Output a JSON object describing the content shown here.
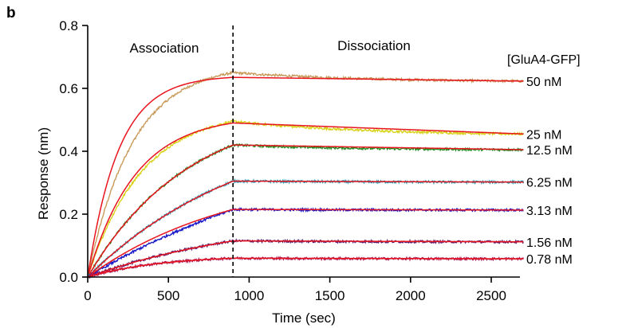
{
  "panel_label": "b",
  "chart_data": {
    "type": "line",
    "title": "",
    "xlabel": "Time (sec)",
    "ylabel": "Response (nm)",
    "xlim": [
      0,
      2700
    ],
    "ylim": [
      0,
      0.8
    ],
    "x_ticks": [
      0,
      500,
      1000,
      1500,
      2000,
      2500
    ],
    "y_ticks": [
      0.0,
      0.2,
      0.4,
      0.6,
      0.8
    ],
    "y_tick_labels": [
      "0.0",
      "0.2",
      "0.4",
      "0.6",
      "0.8"
    ],
    "association_end_sec": 900,
    "phase_labels": {
      "association": "Association",
      "dissociation": "Dissociation"
    },
    "legend_title": "[GluA4-GFP]",
    "fit_color": "#e8141e",
    "series": [
      {
        "name": "50 nM",
        "color": "#c89a5a",
        "plateau": 0.65,
        "peak_fit": 0.635,
        "end": 0.623,
        "k_data": 0.0036,
        "k_fit": 0.0052
      },
      {
        "name": "25 nM",
        "color": "#d8d21a",
        "plateau": 0.495,
        "peak_fit": 0.49,
        "end": 0.455,
        "k_data": 0.003,
        "k_fit": 0.0034
      },
      {
        "name": "12.5 nM",
        "color": "#1e8c1e",
        "plateau": 0.42,
        "peak_fit": 0.42,
        "end": 0.405,
        "k_data": 0.0016,
        "k_fit": 0.0016
      },
      {
        "name": "6.25 nM",
        "color": "#2a9ab4",
        "plateau": 0.305,
        "peak_fit": 0.305,
        "end": 0.302,
        "k_data": 0.001,
        "k_fit": 0.001
      },
      {
        "name": "3.13 nM",
        "color": "#1a1ac8",
        "plateau": 0.215,
        "peak_fit": 0.215,
        "end": 0.213,
        "k_data": 0.0006,
        "k_fit": 0.0011
      },
      {
        "name": "1.56 nM",
        "color": "#5a1a6e",
        "plateau": 0.115,
        "peak_fit": 0.115,
        "end": 0.112,
        "k_data": 0.0009,
        "k_fit": 0.0009
      },
      {
        "name": "0.78 nM",
        "color": "#a81a5a",
        "plateau": 0.06,
        "peak_fit": 0.06,
        "end": 0.058,
        "k_data": 0.0022,
        "k_fit": 0.0022
      }
    ]
  }
}
